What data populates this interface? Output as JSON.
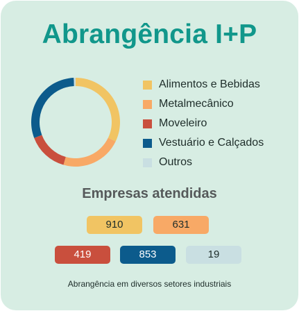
{
  "title": "Abrangência I+P",
  "subtitle": "Empresas atendidas",
  "caption": "Abrangência em diversos setores industriais",
  "chart_data": {
    "type": "pie",
    "variant": "donut",
    "title": "Abrangência I+P",
    "legend_position": "right",
    "categories": [
      "Alimentos e Bebidas",
      "Metalmecânico",
      "Moveleiro",
      "Vestuário e Calçados",
      "Outros"
    ],
    "values": [
      910,
      631,
      419,
      853,
      19
    ],
    "colors": [
      "#f1c463",
      "#f8a966",
      "#c94f3d",
      "#0c5b8c",
      "#c9dfe2"
    ],
    "value_label_colors": [
      "#1e2d2a",
      "#1e2d2a",
      "#ffffff",
      "#ffffff",
      "#1e2d2a"
    ]
  }
}
